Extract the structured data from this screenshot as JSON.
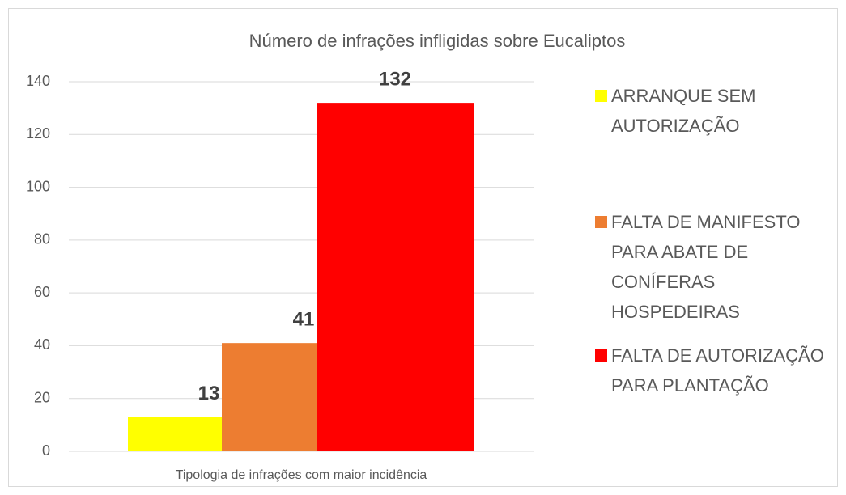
{
  "chart_data": {
    "type": "bar",
    "title": "Número de infrações infligidas sobre Eucaliptos",
    "categories": [
      "Tipologia de infrações com maior incidência"
    ],
    "series": [
      {
        "name": "ARRANQUE SEM AUTORIZAÇÃO",
        "color": "#ffff00",
        "values": [
          13
        ]
      },
      {
        "name": "FALTA DE MANIFESTO PARA ABATE DE CONÍFERAS HOSPEDEIRAS",
        "color": "#ed7d31",
        "values": [
          41
        ]
      },
      {
        "name": "FALTA DE AUTORIZAÇÃO PARA PLANTAÇÃO",
        "color": "#ff0000",
        "values": [
          132
        ]
      }
    ],
    "ylim": [
      0,
      140
    ],
    "yticks": [
      0,
      20,
      40,
      60,
      80,
      100,
      120,
      140
    ],
    "grid": true,
    "legend": "right"
  }
}
